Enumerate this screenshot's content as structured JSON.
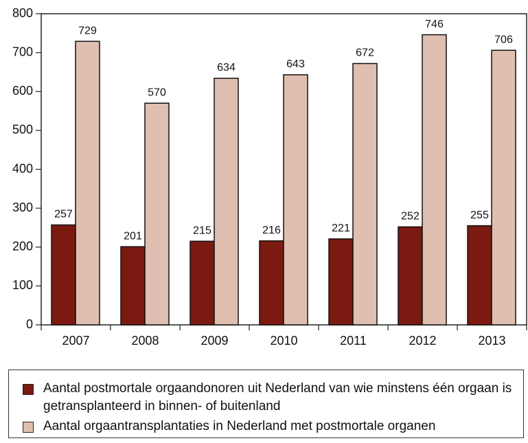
{
  "chart_data": {
    "type": "bar",
    "categories": [
      "2007",
      "2008",
      "2009",
      "2010",
      "2011",
      "2012",
      "2013"
    ],
    "series": [
      {
        "name": "Aantal postmortale orgaandonoren uit Nederland van wie minstens één orgaan is getransplanteerd in binnen- of buitenland",
        "color": "#7a1a10",
        "values": [
          257,
          201,
          215,
          216,
          221,
          252,
          255
        ]
      },
      {
        "name": "Aantal orgaantransplantaties in Nederland met postmortale organen",
        "color": "#e0bfb0",
        "values": [
          729,
          570,
          634,
          643,
          672,
          746,
          706
        ]
      }
    ],
    "ylim": [
      0,
      800
    ],
    "yticks": [
      0,
      100,
      200,
      300,
      400,
      500,
      600,
      700,
      800
    ],
    "grid": false,
    "legend": "bottom"
  }
}
